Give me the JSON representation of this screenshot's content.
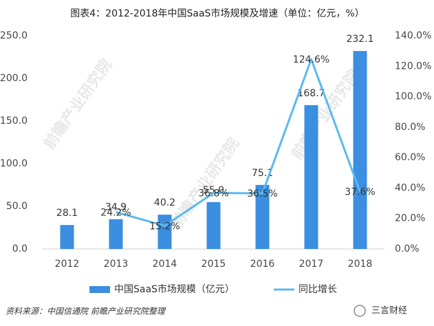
{
  "chart_data": {
    "type": "bar_line",
    "title": "图表4：2012-2018年中国SaaS市场规模及增速（单位：亿元，%）",
    "categories": [
      "2012",
      "2013",
      "2014",
      "2015",
      "2016",
      "2017",
      "2018"
    ],
    "series": [
      {
        "name": "中国SaaS市场规模（亿元）",
        "type": "bar",
        "color": "#3b8ee0",
        "values": [
          28.1,
          34.9,
          40.2,
          55.0,
          75.1,
          168.7,
          232.1
        ],
        "value_labels": [
          "28.1",
          "34.9",
          "40.2",
          "55.0",
          "75.1",
          "168.7",
          "232.1"
        ]
      },
      {
        "name": "同比增长",
        "type": "line",
        "axis": "y2",
        "color": "#5ab9ee",
        "values": [
          null,
          24.2,
          15.2,
          36.8,
          36.5,
          124.6,
          37.6
        ],
        "value_labels": [
          null,
          "24.2%",
          "15.2%",
          "36.8%",
          "36.5%",
          "124.6%",
          "37.6%"
        ]
      }
    ],
    "ylim": [
      0,
      250
    ],
    "yticks": [
      {
        "value": 0,
        "label": "0.0"
      },
      {
        "value": 50,
        "label": "50.0"
      },
      {
        "value": 100,
        "label": "100.0"
      },
      {
        "value": 150,
        "label": "150.0"
      },
      {
        "value": 200,
        "label": "200.0"
      },
      {
        "value": 250,
        "label": "250.0"
      }
    ],
    "y2lim": [
      0,
      140
    ],
    "y2ticks": [
      {
        "value": 0,
        "label": "0.0%"
      },
      {
        "value": 20,
        "label": "20.0%"
      },
      {
        "value": 40,
        "label": "40.0%"
      },
      {
        "value": 60,
        "label": "60.0%"
      },
      {
        "value": 80,
        "label": "80.0%"
      },
      {
        "value": 100,
        "label": "100.0%"
      },
      {
        "value": 120,
        "label": "120.0%"
      },
      {
        "value": 140,
        "label": "140.0%"
      }
    ],
    "grid": false,
    "legend": "bottom",
    "source": "资料来源：中国信通院 前瞻产业研究院整理",
    "watermark": "前瞻产业研究院",
    "brand": "三言财经"
  }
}
